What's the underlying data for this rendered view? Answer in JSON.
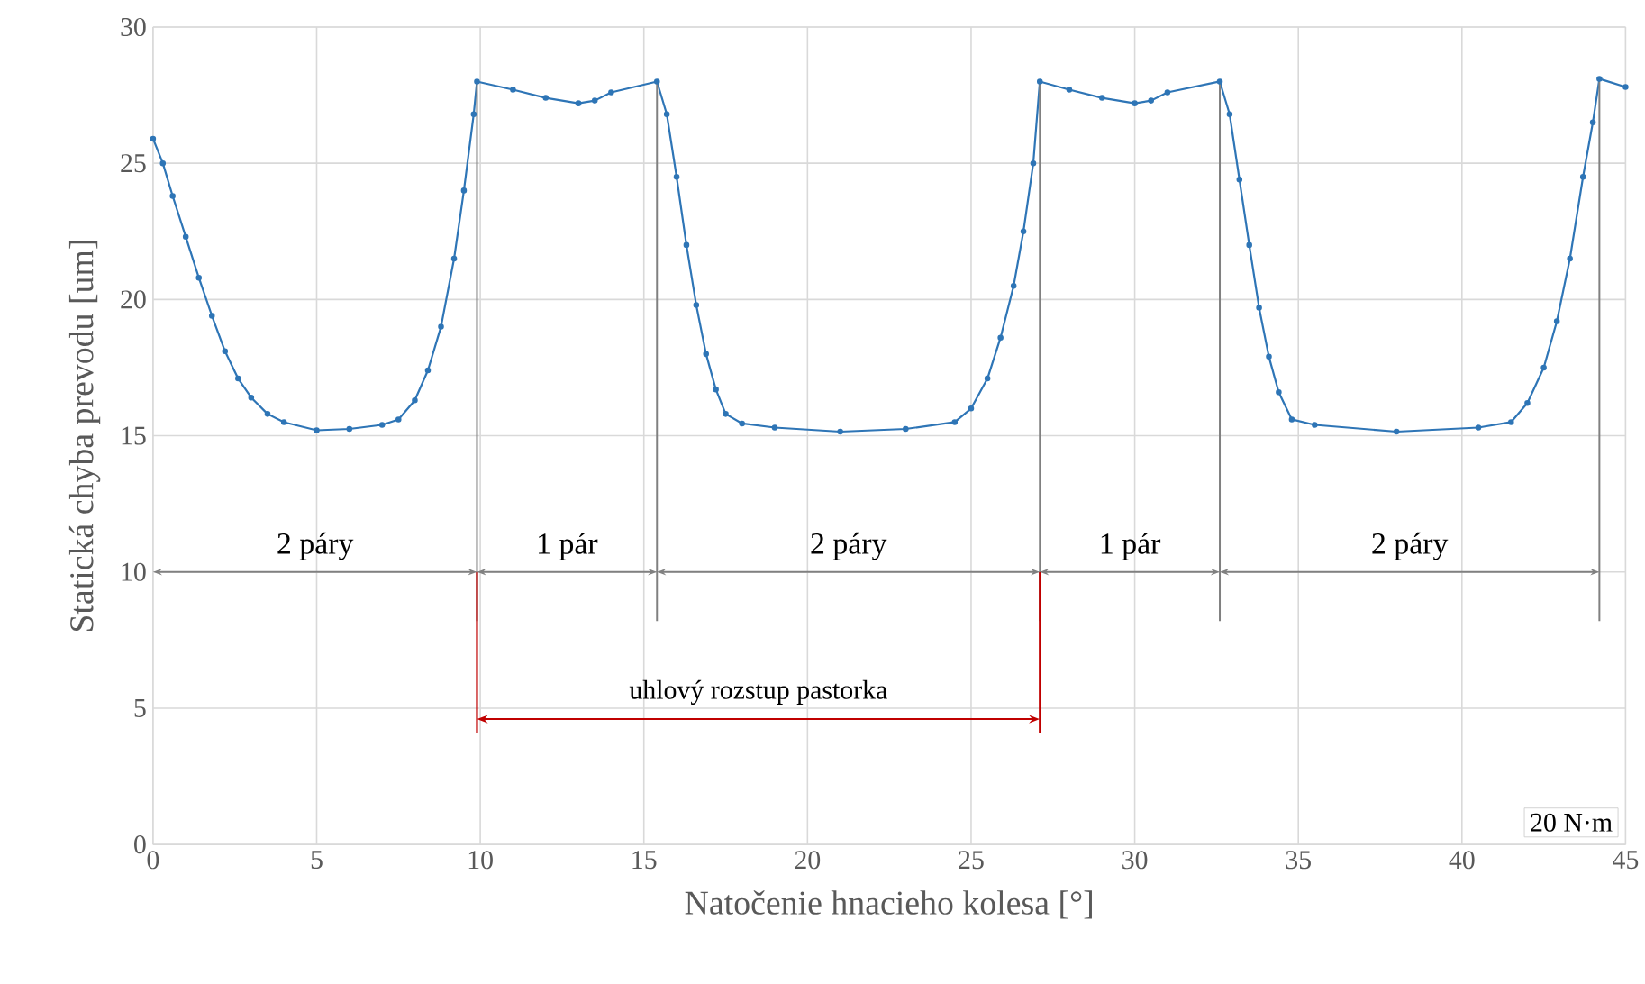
{
  "chart_data": {
    "type": "line",
    "xlabel": "Natočenie hnacieho kolesa [°]",
    "ylabel": "Statická chyba prevodu [um]",
    "xlim": [
      0,
      45
    ],
    "ylim": [
      0,
      30
    ],
    "xticks": [
      0,
      5,
      10,
      15,
      20,
      25,
      30,
      35,
      40,
      45
    ],
    "yticks": [
      0,
      5,
      10,
      15,
      20,
      25,
      30
    ],
    "grid": true,
    "marker": "circle",
    "line_style": "solid",
    "series": [
      {
        "color": "#2e75b6",
        "x": [
          0,
          0.3,
          0.6,
          1.0,
          1.4,
          1.8,
          2.2,
          2.6,
          3.0,
          3.5,
          4.0,
          5.0,
          6.0,
          7.0,
          7.5,
          8.0,
          8.4,
          8.8,
          9.2,
          9.5,
          9.8,
          9.9,
          11,
          12,
          13,
          13.5,
          14,
          15.4,
          15.7,
          16.0,
          16.3,
          16.6,
          16.9,
          17.2,
          17.5,
          18,
          19,
          21,
          23,
          24.5,
          25,
          25.5,
          25.9,
          26.3,
          26.6,
          26.9,
          27.1,
          28,
          29,
          30,
          30.5,
          31,
          32.6,
          32.9,
          33.2,
          33.5,
          33.8,
          34.1,
          34.4,
          34.8,
          35.5,
          38,
          40.5,
          41.5,
          42,
          42.5,
          42.9,
          43.3,
          43.7,
          44.0,
          44.2,
          45
        ],
        "values": [
          25.9,
          25.0,
          23.8,
          22.3,
          20.8,
          19.4,
          18.1,
          17.1,
          16.4,
          15.8,
          15.5,
          15.2,
          15.25,
          15.4,
          15.6,
          16.3,
          17.4,
          19.0,
          21.5,
          24.0,
          26.8,
          28.0,
          27.7,
          27.4,
          27.2,
          27.3,
          27.6,
          28.0,
          26.8,
          24.5,
          22.0,
          19.8,
          18.0,
          16.7,
          15.8,
          15.45,
          15.3,
          15.15,
          15.25,
          15.5,
          16.0,
          17.1,
          18.6,
          20.5,
          22.5,
          25.0,
          28.0,
          27.7,
          27.4,
          27.2,
          27.3,
          27.6,
          28.0,
          26.8,
          24.4,
          22.0,
          19.7,
          17.9,
          16.6,
          15.6,
          15.4,
          15.15,
          15.3,
          15.5,
          16.2,
          17.5,
          19.2,
          21.5,
          24.5,
          26.5,
          28.1,
          27.8
        ]
      }
    ],
    "ref_lines": [
      {
        "axis": "x",
        "value": 9.9,
        "color": "#808080"
      },
      {
        "axis": "x",
        "value": 15.4,
        "color": "#808080"
      },
      {
        "axis": "x",
        "value": 27.1,
        "color": "#808080"
      },
      {
        "axis": "x",
        "value": 32.6,
        "color": "#808080"
      },
      {
        "axis": "x",
        "value": 44.2,
        "color": "#808080"
      },
      {
        "axis": "x",
        "value": 9.9,
        "color": "#c00000"
      },
      {
        "axis": "x",
        "value": 27.1,
        "color": "#c00000"
      }
    ],
    "annotations": [
      "2 páry",
      "1 pár",
      "2 páry",
      "1 pár",
      "2 páry",
      "uhlový rozstup pastorka",
      "20 N·m"
    ]
  }
}
